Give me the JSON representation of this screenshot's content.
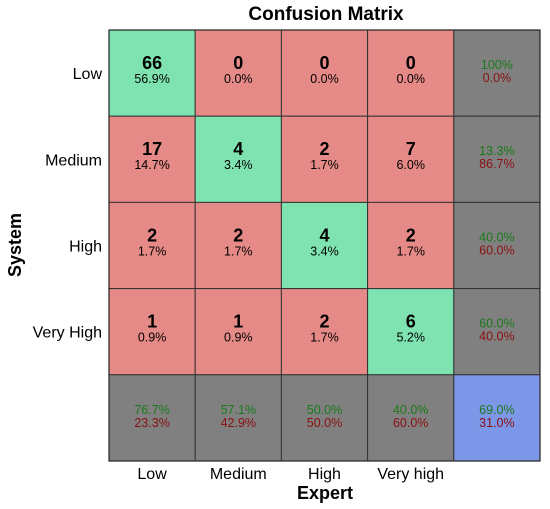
{
  "chart_data": {
    "type": "heatmap",
    "title": "Confusion Matrix",
    "xlabel": "Expert",
    "ylabel": "System",
    "columns": [
      "Low",
      "Medium",
      "High",
      "Very high"
    ],
    "rows": [
      "Low",
      "Medium",
      "High",
      "Very High"
    ],
    "cells": [
      [
        {
          "count": "66",
          "pct": "56.9%"
        },
        {
          "count": "0",
          "pct": "0.0%"
        },
        {
          "count": "0",
          "pct": "0.0%"
        },
        {
          "count": "0",
          "pct": "0.0%"
        }
      ],
      [
        {
          "count": "17",
          "pct": "14.7%"
        },
        {
          "count": "4",
          "pct": "3.4%"
        },
        {
          "count": "2",
          "pct": "1.7%"
        },
        {
          "count": "7",
          "pct": "6.0%"
        }
      ],
      [
        {
          "count": "2",
          "pct": "1.7%"
        },
        {
          "count": "2",
          "pct": "1.7%"
        },
        {
          "count": "4",
          "pct": "3.4%"
        },
        {
          "count": "2",
          "pct": "1.7%"
        }
      ],
      [
        {
          "count": "1",
          "pct": "0.9%"
        },
        {
          "count": "1",
          "pct": "0.9%"
        },
        {
          "count": "2",
          "pct": "1.7%"
        },
        {
          "count": "6",
          "pct": "5.2%"
        }
      ]
    ],
    "row_summary": [
      {
        "correct": "100%",
        "error": "0.0%"
      },
      {
        "correct": "13.3%",
        "error": "86.7%"
      },
      {
        "correct": "40.0%",
        "error": "60.0%"
      },
      {
        "correct": "60.0%",
        "error": "40.0%"
      }
    ],
    "col_summary": [
      {
        "correct": "76.7%",
        "error": "23.3%"
      },
      {
        "correct": "57.1%",
        "error": "42.9%"
      },
      {
        "correct": "50.0%",
        "error": "50.0%"
      },
      {
        "correct": "40.0%",
        "error": "60.0%"
      }
    ],
    "overall": {
      "correct": "69.0%",
      "error": "31.0%"
    },
    "colors": {
      "correct_cell": "#7ee3b1",
      "wrong_cell": "#e68a87",
      "summary_cell": "#808080",
      "overall_cell": "#7d97e8",
      "correct_text": "#1a7a1a",
      "error_text": "#8b1010",
      "border": "#333333"
    }
  }
}
